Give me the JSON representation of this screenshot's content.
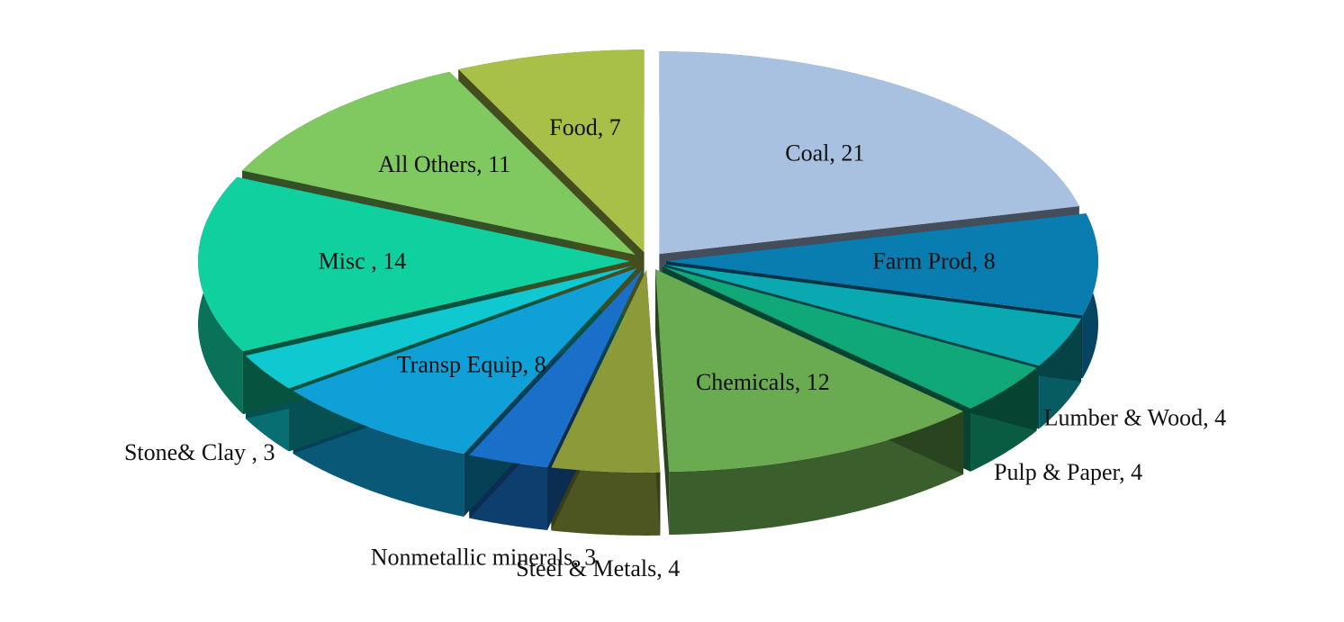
{
  "chart_data": {
    "type": "pie",
    "value_labels": [
      "Coal, 21",
      "Farm Prod, 8",
      "Lumber & Wood, 4",
      "Pulp & Paper, 4",
      "Chemicals, 12",
      "Steel & Metals, 4",
      "Nonmetallic minerals, 3",
      "Transp Equip, 8",
      "Stone& Clay , 3",
      "Misc , 14",
      "All Others, 11",
      "Food, 7"
    ],
    "values": [
      21,
      8,
      4,
      4,
      12,
      4,
      3,
      8,
      3,
      14,
      11,
      7
    ],
    "colors": [
      "#a9c1e0",
      "#0a7db0",
      "#0aa8b0",
      "#10a878",
      "#6aaa50",
      "#8c9a3a",
      "#1a70c8",
      "#10a0d8",
      "#10c8d0",
      "#10d0a0",
      "#80c860",
      "#a8c048"
    ]
  }
}
